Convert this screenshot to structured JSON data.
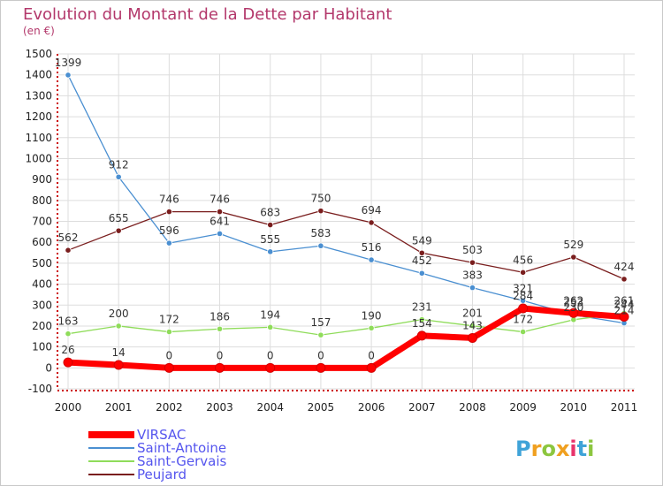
{
  "chart_data": {
    "type": "line",
    "title": "Evolution du Montant de la Dette par Habitant",
    "subtitle": "(en €)",
    "xlabel": "",
    "ylabel": "",
    "ylim": [
      -100,
      1500
    ],
    "yticks": [
      -100,
      0,
      100,
      200,
      300,
      400,
      500,
      600,
      700,
      800,
      900,
      1000,
      1100,
      1200,
      1300,
      1400,
      1500
    ],
    "categories": [
      "2000",
      "2001",
      "2002",
      "2003",
      "2004",
      "2005",
      "2006",
      "2007",
      "2008",
      "2009",
      "2010",
      "2011"
    ],
    "grid": true,
    "legend_position": "bottom-left",
    "series": [
      {
        "name": "Peujard",
        "color": "#7a1e1e",
        "values": [
          562,
          655,
          746,
          746,
          683,
          750,
          694,
          549,
          503,
          456,
          529,
          424
        ]
      },
      {
        "name": "Saint-Antoine",
        "color": "#4a8fd1",
        "values": [
          1399,
          912,
          596,
          641,
          555,
          583,
          516,
          452,
          383,
          321,
          253,
          214
        ]
      },
      {
        "name": "Saint-Gervais",
        "color": "#8fdc5a",
        "values": [
          163,
          200,
          172,
          186,
          194,
          157,
          190,
          231,
          201,
          172,
          230,
          261
        ]
      },
      {
        "name": "VIRSAC",
        "color": "#ff0000",
        "values": [
          26,
          14,
          0,
          0,
          0,
          0,
          0,
          154,
          143,
          284,
          262,
          244
        ]
      }
    ],
    "legend_order": [
      "VIRSAC",
      "Saint-Antoine",
      "Saint-Gervais",
      "Peujard"
    ]
  },
  "brand": {
    "letters": [
      "P",
      "r",
      "o",
      "x",
      "i",
      "t",
      "i"
    ],
    "colors": [
      "#3fa3d8",
      "#f0a020",
      "#8cc63f",
      "#f0a020",
      "#e8336b",
      "#3fa3d8",
      "#8cc63f"
    ]
  }
}
